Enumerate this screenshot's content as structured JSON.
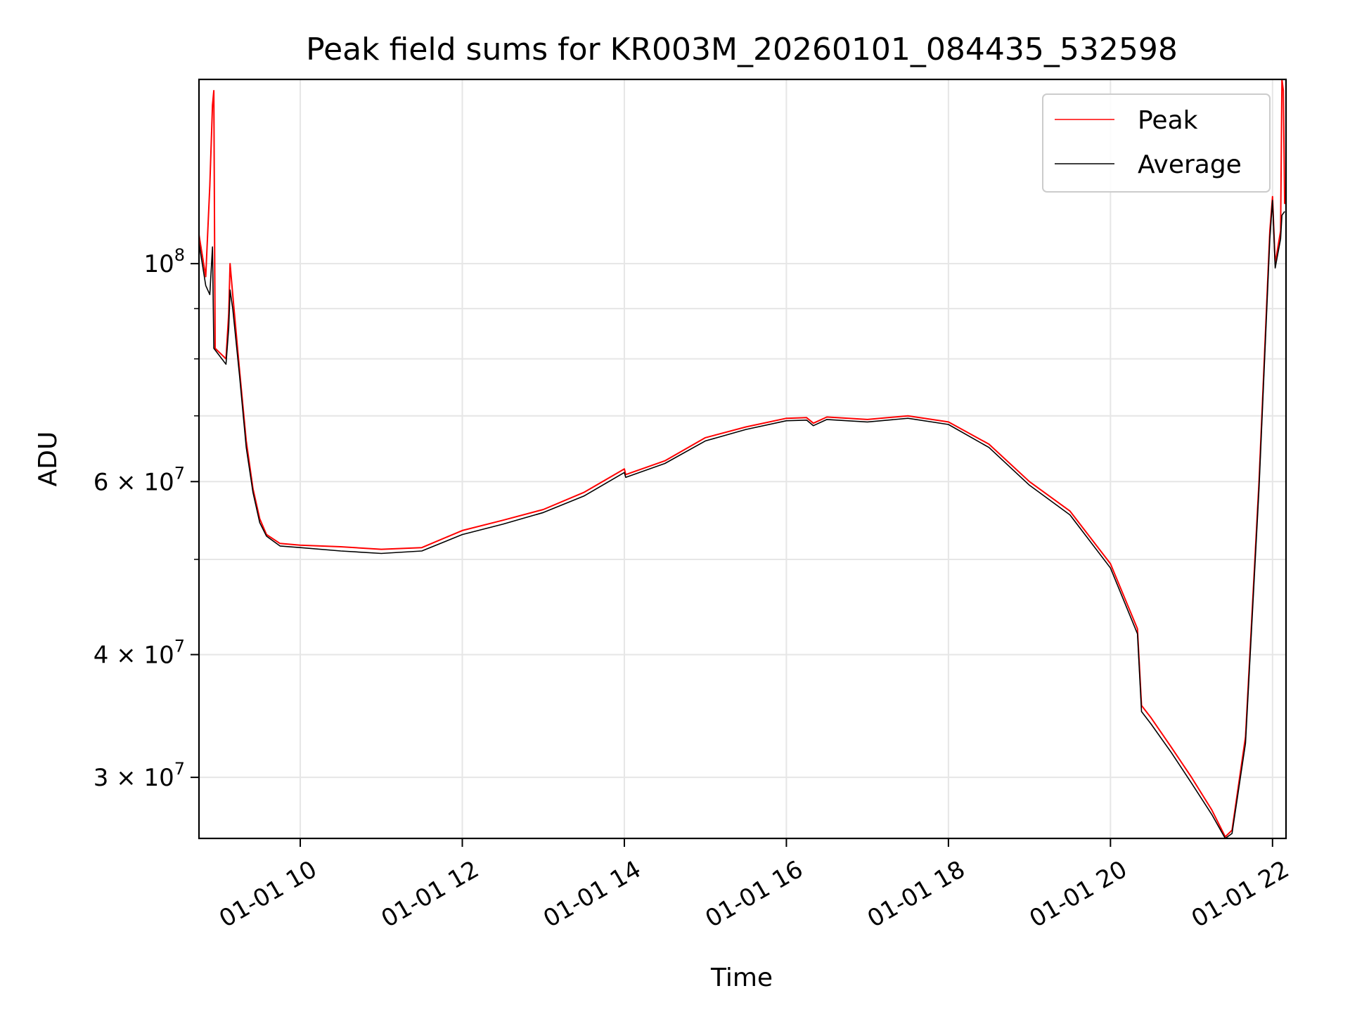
{
  "chart_data": {
    "type": "line",
    "title": "Peak field sums for KR003M_20260101_084435_532598",
    "xlabel": "Time",
    "ylabel": "ADU",
    "y_scale": "log",
    "xlim": [
      "01-01 08:45",
      "01-01 22:10"
    ],
    "ylim": [
      26000000,
      154000000
    ],
    "grid": true,
    "legend_position": "top-right",
    "x_ticks": [
      {
        "value": "01-01 10:00",
        "label": "01-01 10"
      },
      {
        "value": "01-01 12:00",
        "label": "01-01 12"
      },
      {
        "value": "01-01 14:00",
        "label": "01-01 14"
      },
      {
        "value": "01-01 16:00",
        "label": "01-01 16"
      },
      {
        "value": "01-01 18:00",
        "label": "01-01 18"
      },
      {
        "value": "01-01 20:00",
        "label": "01-01 20"
      },
      {
        "value": "01-01 22:00",
        "label": "01-01 22"
      }
    ],
    "y_ticks": [
      {
        "value": 100000000,
        "base": "10",
        "exp": "8"
      },
      {
        "value": 60000000,
        "base": "6 × 10",
        "exp": "7"
      },
      {
        "value": 40000000,
        "base": "4 × 10",
        "exp": "7"
      },
      {
        "value": 30000000,
        "base": "3 × 10",
        "exp": "7"
      }
    ],
    "y_minor_ticks": [
      50000000,
      70000000,
      80000000,
      90000000
    ],
    "series": [
      {
        "name": "Peak",
        "color": "#ff0000",
        "points": [
          [
            "01-01 08:45",
            107000000
          ],
          [
            "01-01 08:50",
            97000000
          ],
          [
            "01-01 08:53",
            120000000
          ],
          [
            "01-01 08:55",
            145000000
          ],
          [
            "01-01 08:56",
            150000000
          ],
          [
            "01-01 08:57",
            82000000
          ],
          [
            "01-01 09:05",
            80000000
          ],
          [
            "01-01 09:07",
            89000000
          ],
          [
            "01-01 09:08",
            100000000
          ],
          [
            "01-01 09:10",
            93000000
          ],
          [
            "01-01 09:15",
            78000000
          ],
          [
            "01-01 09:20",
            66000000
          ],
          [
            "01-01 09:25",
            59000000
          ],
          [
            "01-01 09:30",
            55000000
          ],
          [
            "01-01 09:35",
            53000000
          ],
          [
            "01-01 09:45",
            51900000
          ],
          [
            "01-01 10:00",
            51700000
          ],
          [
            "01-01 10:30",
            51500000
          ],
          [
            "01-01 11:00",
            51200000
          ],
          [
            "01-01 11:30",
            51400000
          ],
          [
            "01-01 12:00",
            53500000
          ],
          [
            "01-01 12:30",
            54800000
          ],
          [
            "01-01 13:00",
            56200000
          ],
          [
            "01-01 13:30",
            58500000
          ],
          [
            "01-01 14:00",
            61800000
          ],
          [
            "01-01 14:01",
            61000000
          ],
          [
            "01-01 14:30",
            63000000
          ],
          [
            "01-01 15:00",
            66500000
          ],
          [
            "01-01 15:30",
            68200000
          ],
          [
            "01-01 16:00",
            69600000
          ],
          [
            "01-01 16:15",
            69700000
          ],
          [
            "01-01 16:20",
            68800000
          ],
          [
            "01-01 16:30",
            69800000
          ],
          [
            "01-01 17:00",
            69400000
          ],
          [
            "01-01 17:30",
            70000000
          ],
          [
            "01-01 18:00",
            69000000
          ],
          [
            "01-01 18:30",
            65500000
          ],
          [
            "01-01 19:00",
            60000000
          ],
          [
            "01-01 19:30",
            56000000
          ],
          [
            "01-01 20:00",
            49500000
          ],
          [
            "01-01 20:20",
            42500000
          ],
          [
            "01-01 20:23",
            35500000
          ],
          [
            "01-01 20:30",
            34500000
          ],
          [
            "01-01 20:45",
            32200000
          ],
          [
            "01-01 21:00",
            30000000
          ],
          [
            "01-01 21:15",
            27800000
          ],
          [
            "01-01 21:25",
            26100000
          ],
          [
            "01-01 21:30",
            26500000
          ],
          [
            "01-01 21:40",
            33000000
          ],
          [
            "01-01 21:50",
            60000000
          ],
          [
            "01-01 21:58",
            108000000
          ],
          [
            "01-01 22:00",
            117000000
          ],
          [
            "01-01 22:02",
            100000000
          ],
          [
            "01-01 22:06",
            108000000
          ],
          [
            "01-01 22:07",
            154000000
          ],
          [
            "01-01 22:08",
            150000000
          ],
          [
            "01-01 22:09",
            115000000
          ]
        ]
      },
      {
        "name": "Average",
        "color": "#000000",
        "points": [
          [
            "01-01 08:45",
            105000000
          ],
          [
            "01-01 08:50",
            95000000
          ],
          [
            "01-01 08:53",
            93000000
          ],
          [
            "01-01 08:55",
            104000000
          ],
          [
            "01-01 08:56",
            82000000
          ],
          [
            "01-01 09:05",
            79000000
          ],
          [
            "01-01 09:07",
            86000000
          ],
          [
            "01-01 09:08",
            94000000
          ],
          [
            "01-01 09:10",
            90000000
          ],
          [
            "01-01 09:15",
            77000000
          ],
          [
            "01-01 09:20",
            65000000
          ],
          [
            "01-01 09:25",
            58500000
          ],
          [
            "01-01 09:30",
            54500000
          ],
          [
            "01-01 09:35",
            52800000
          ],
          [
            "01-01 09:45",
            51600000
          ],
          [
            "01-01 10:00",
            51400000
          ],
          [
            "01-01 10:30",
            51000000
          ],
          [
            "01-01 11:00",
            50700000
          ],
          [
            "01-01 11:30",
            51000000
          ],
          [
            "01-01 12:00",
            53000000
          ],
          [
            "01-01 12:30",
            54300000
          ],
          [
            "01-01 13:00",
            55800000
          ],
          [
            "01-01 13:30",
            58000000
          ],
          [
            "01-01 14:00",
            61300000
          ],
          [
            "01-01 14:01",
            60600000
          ],
          [
            "01-01 14:30",
            62600000
          ],
          [
            "01-01 15:00",
            66000000
          ],
          [
            "01-01 15:30",
            67800000
          ],
          [
            "01-01 16:00",
            69200000
          ],
          [
            "01-01 16:15",
            69300000
          ],
          [
            "01-01 16:20",
            68400000
          ],
          [
            "01-01 16:30",
            69400000
          ],
          [
            "01-01 17:00",
            69000000
          ],
          [
            "01-01 17:30",
            69600000
          ],
          [
            "01-01 18:00",
            68600000
          ],
          [
            "01-01 18:30",
            65000000
          ],
          [
            "01-01 19:00",
            59500000
          ],
          [
            "01-01 19:30",
            55500000
          ],
          [
            "01-01 20:00",
            49000000
          ],
          [
            "01-01 20:20",
            42000000
          ],
          [
            "01-01 20:23",
            35000000
          ],
          [
            "01-01 20:30",
            34000000
          ],
          [
            "01-01 20:45",
            31800000
          ],
          [
            "01-01 21:00",
            29600000
          ],
          [
            "01-01 21:15",
            27500000
          ],
          [
            "01-01 21:25",
            26000000
          ],
          [
            "01-01 21:30",
            26300000
          ],
          [
            "01-01 21:40",
            32500000
          ],
          [
            "01-01 21:50",
            59000000
          ],
          [
            "01-01 21:58",
            106000000
          ],
          [
            "01-01 22:00",
            116000000
          ],
          [
            "01-01 22:02",
            99000000
          ],
          [
            "01-01 22:06",
            106000000
          ],
          [
            "01-01 22:07",
            112000000
          ],
          [
            "01-01 22:09",
            113000000
          ]
        ]
      }
    ]
  }
}
